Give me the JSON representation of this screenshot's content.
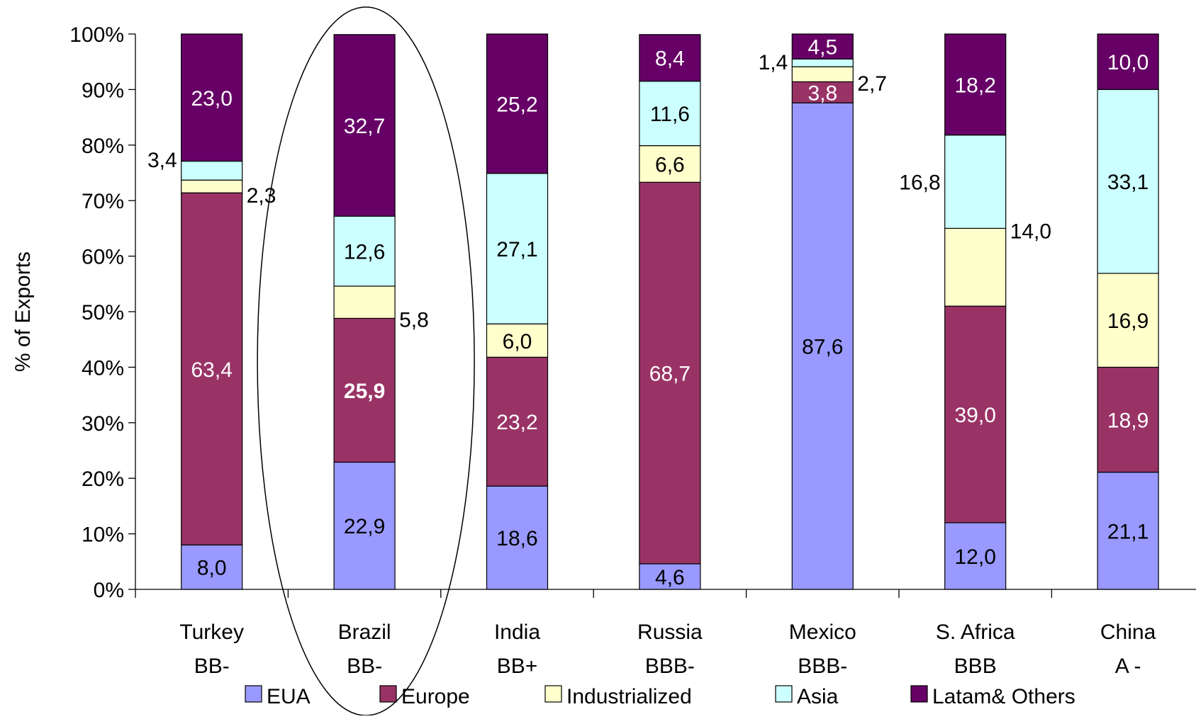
{
  "chart_data": {
    "type": "bar",
    "stacked": true,
    "ylabel": "% of Exports",
    "ylim": [
      0,
      100
    ],
    "y_ticks": [
      "0%",
      "10%",
      "20%",
      "30%",
      "40%",
      "50%",
      "60%",
      "70%",
      "80%",
      "90%",
      "100%"
    ],
    "categories": [
      {
        "name": "Turkey",
        "rating": "BB-"
      },
      {
        "name": "Brazil",
        "rating": "BB-"
      },
      {
        "name": "India",
        "rating": "BB+"
      },
      {
        "name": "Russia",
        "rating": "BBB-"
      },
      {
        "name": "Mexico",
        "rating": "BBB-"
      },
      {
        "name": "S. Africa",
        "rating": "BBB"
      },
      {
        "name": "China",
        "rating": "A -"
      }
    ],
    "series": [
      {
        "name": "EUA",
        "color": "#9999FF",
        "values": [
          8.0,
          22.9,
          18.6,
          4.6,
          87.6,
          12.0,
          21.1
        ],
        "labels": [
          "8,0",
          "22,9",
          "18,6",
          "4,6",
          "87,6",
          "12,0",
          "21,1"
        ]
      },
      {
        "name": "Europe",
        "color": "#993366",
        "values": [
          63.4,
          25.9,
          23.2,
          68.7,
          3.8,
          39.0,
          18.9
        ],
        "labels": [
          "63,4",
          "25,9",
          "23,2",
          "68,7",
          "3,8",
          "39,0",
          "18,9"
        ]
      },
      {
        "name": "Industrialized",
        "color": "#FFFFCC",
        "values": [
          2.3,
          5.8,
          6.0,
          6.6,
          2.7,
          14.0,
          16.9
        ],
        "labels": [
          "2,3",
          "5,8",
          "6,0",
          "6,6",
          "2,7",
          "14,0",
          "16,9"
        ]
      },
      {
        "name": "Asia",
        "color": "#CCFFFF",
        "values": [
          3.4,
          12.6,
          27.1,
          11.6,
          1.4,
          16.8,
          33.1
        ],
        "labels": [
          "3,4",
          "12,6",
          "27,1",
          "11,6",
          "1,4",
          "16,8",
          "33,1"
        ]
      },
      {
        "name": "Latam& Others",
        "color": "#660066",
        "values": [
          23.0,
          32.7,
          25.2,
          8.4,
          4.5,
          18.2,
          10.0
        ],
        "labels": [
          "23,0",
          "32,7",
          "25,2",
          "8,4",
          "4,5",
          "18,2",
          "10,0"
        ]
      }
    ],
    "highlight": {
      "category": "Brazil",
      "shape": "ellipse",
      "bold_label": "25,9"
    },
    "legend_position": "bottom",
    "grid": false
  }
}
